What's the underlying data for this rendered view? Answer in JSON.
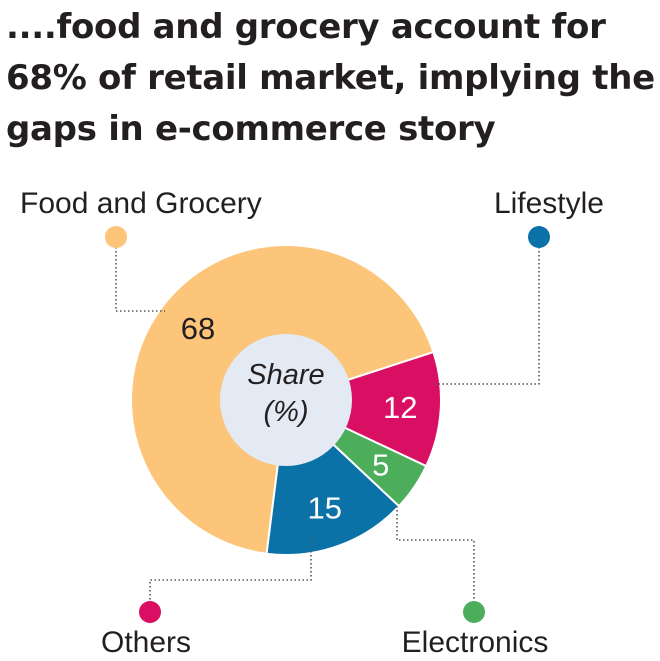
{
  "headline": {
    "line1": "....food and grocery account for",
    "line2": "68% of retail market, implying the",
    "line3": "gaps in e-commerce story"
  },
  "chart_data": {
    "type": "pie",
    "center_label": [
      "Share",
      "(%)"
    ],
    "slices": [
      {
        "name": "Food and Grocery",
        "value": 68,
        "color": "#fcc57a",
        "value_color": "#231f20"
      },
      {
        "name": "Lifestyle",
        "value": 15,
        "color": "#0b72a8",
        "value_color": "#ffffff"
      },
      {
        "name": "Electronics",
        "value": 5,
        "color": "#4cae5b",
        "value_color": "#ffffff"
      },
      {
        "name": "Others",
        "value": 12,
        "color": "#d90f63",
        "value_color": "#ffffff"
      }
    ],
    "center_color": "#e3eaf4"
  }
}
